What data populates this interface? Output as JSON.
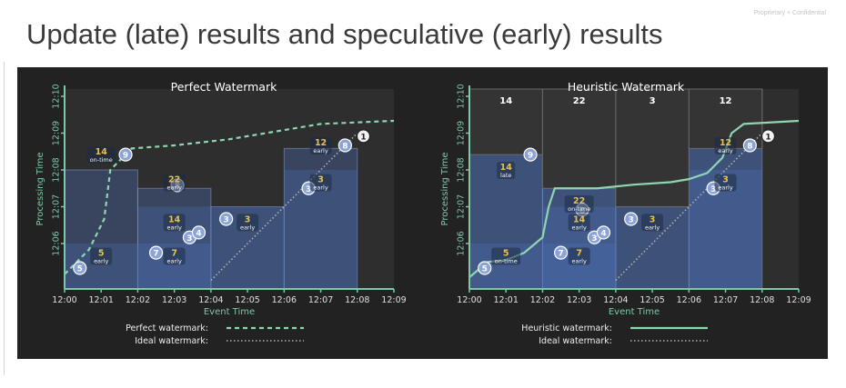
{
  "slide": {
    "title": "Update (late) results and speculative (early) results",
    "confidential": "Proprietary + Confidential"
  },
  "colors": {
    "panel_bg": "#222222",
    "plot_bg": "#2e2e2e",
    "window_fill": "#4d6fb8",
    "pane_fill": "#2e4a7a",
    "watermark": "#8fd6b0",
    "early_label": "#e9c24b",
    "axis": "#7ec8a8"
  },
  "chart_data": [
    {
      "type": "area",
      "title": "Perfect Watermark",
      "xlabel": "Event Time",
      "ylabel": "Processing Time",
      "x_ticks": [
        "12:00",
        "12:01",
        "12:02",
        "12:03",
        "12:04",
        "12:05",
        "12:06",
        "12:07",
        "12:08",
        "12:09"
      ],
      "y_ticks": [
        "12:06",
        "12:07",
        "12:08",
        "12:09",
        "12:10"
      ],
      "windows": [
        {
          "start": "12:00",
          "end": "12:02"
        },
        {
          "start": "12:02",
          "end": "12:04"
        },
        {
          "start": "12:04",
          "end": "12:06"
        },
        {
          "start": "12:06",
          "end": "12:08"
        }
      ],
      "panes": [
        {
          "window": "12:00-12:02",
          "fired": "12:06:00",
          "value": 5,
          "timing": "early"
        },
        {
          "window": "12:00-12:02",
          "fired": "12:08:20",
          "value": 14,
          "timing": "on-time"
        },
        {
          "window": "12:02-12:04",
          "fired": "12:06:00",
          "value": 7,
          "timing": "early"
        },
        {
          "window": "12:02-12:04",
          "fired": "12:07:00",
          "value": 14,
          "timing": "early"
        },
        {
          "window": "12:02-12:04",
          "fired": "12:08:00",
          "value": 22,
          "timing": "early"
        },
        {
          "window": "12:04-12:06",
          "fired": "12:07:00",
          "value": 3,
          "timing": "early"
        },
        {
          "window": "12:06-12:08",
          "fired": "12:08:00",
          "value": 3,
          "timing": "early"
        },
        {
          "window": "12:06-12:08",
          "fired": "12:09:00",
          "value": 12,
          "timing": "early"
        }
      ],
      "pane_labels": [
        {
          "value": "5",
          "timing": "early",
          "x": "12:01",
          "y": "12:05:40"
        },
        {
          "value": "14",
          "timing": "on-time",
          "x": "12:01",
          "y": "12:08:25"
        },
        {
          "value": "7",
          "timing": "early",
          "x": "12:03",
          "y": "12:05:40"
        },
        {
          "value": "14",
          "timing": "early",
          "x": "12:03",
          "y": "12:06:35"
        },
        {
          "value": "22",
          "timing": "early",
          "x": "12:03",
          "y": "12:07:40"
        },
        {
          "value": "3",
          "timing": "early",
          "x": "12:05",
          "y": "12:06:35"
        },
        {
          "value": "3",
          "timing": "early",
          "x": "12:07",
          "y": "12:07:40"
        },
        {
          "value": "12",
          "timing": "early",
          "x": "12:07",
          "y": "12:08:40"
        }
      ],
      "data_points": [
        {
          "label": "5",
          "x": "12:00:25",
          "y": "12:05:20"
        },
        {
          "label": "9",
          "x": "12:01:40",
          "y": "12:08:25"
        },
        {
          "label": "7",
          "x": "12:02:30",
          "y": "12:05:45"
        },
        {
          "label": "8",
          "x": "12:03:05",
          "y": "12:07:35"
        },
        {
          "label": "3",
          "x": "12:03:25",
          "y": "12:06:10"
        },
        {
          "label": "4",
          "x": "12:03:40",
          "y": "12:06:18"
        },
        {
          "label": "3",
          "x": "12:04:25",
          "y": "12:06:40"
        },
        {
          "label": "3",
          "x": "12:06:40",
          "y": "12:07:30"
        },
        {
          "label": "8",
          "x": "12:07:40",
          "y": "12:08:40"
        },
        {
          "label": "1",
          "x": "12:08:10",
          "y": "12:08:55"
        }
      ],
      "watermarks": [
        {
          "name": "Perfect watermark",
          "style": "dashed",
          "points": [
            [
              "12:00:00",
              "12:05:10"
            ],
            [
              "12:00:40",
              "12:05:50"
            ],
            [
              "12:01:05",
              "12:06:40"
            ],
            [
              "12:01:15",
              "12:08:00"
            ],
            [
              "12:01:50",
              "12:08:35"
            ],
            [
              "12:03:00",
              "12:08:40"
            ],
            [
              "12:04:30",
              "12:08:50"
            ],
            [
              "12:06:00",
              "12:09:05"
            ],
            [
              "12:07:00",
              "12:09:15"
            ],
            [
              "12:09:00",
              "12:09:20"
            ]
          ]
        },
        {
          "name": "Ideal watermark",
          "style": "dotted",
          "points": [
            [
              "12:04:00",
              "12:05:00"
            ],
            [
              "12:08:00",
              "12:09:00"
            ]
          ]
        }
      ],
      "legend": [
        {
          "label": "Perfect watermark:",
          "style": "dashed"
        },
        {
          "label": "Ideal watermark:",
          "style": "dotted"
        }
      ],
      "legend_position": "bottom"
    },
    {
      "type": "area",
      "title": "Heuristic Watermark",
      "xlabel": "Event Time",
      "ylabel": "Processing Time",
      "x_ticks": [
        "12:00",
        "12:01",
        "12:02",
        "12:03",
        "12:04",
        "12:05",
        "12:06",
        "12:07",
        "12:08",
        "12:09"
      ],
      "y_ticks": [
        "12:06",
        "12:07",
        "12:08",
        "12:09",
        "12:10"
      ],
      "windows": [
        {
          "start": "12:00",
          "end": "12:02"
        },
        {
          "start": "12:02",
          "end": "12:04"
        },
        {
          "start": "12:04",
          "end": "12:06"
        },
        {
          "start": "12:06",
          "end": "12:08"
        }
      ],
      "window_totals": [
        {
          "window": "12:00-12:02",
          "value": "14"
        },
        {
          "window": "12:02-12:04",
          "value": "22"
        },
        {
          "window": "12:04-12:06",
          "value": "3"
        },
        {
          "window": "12:06-12:08",
          "value": "12"
        }
      ],
      "pane_labels": [
        {
          "value": "5",
          "timing": "on-time",
          "x": "12:01",
          "y": "12:05:40"
        },
        {
          "value": "14",
          "timing": "late",
          "x": "12:01",
          "y": "12:08:00"
        },
        {
          "value": "7",
          "timing": "early",
          "x": "12:03",
          "y": "12:05:40"
        },
        {
          "value": "14",
          "timing": "early",
          "x": "12:03",
          "y": "12:06:35"
        },
        {
          "value": "22",
          "timing": "on-time",
          "x": "12:03",
          "y": "12:07:05"
        },
        {
          "value": "3",
          "timing": "early",
          "x": "12:05",
          "y": "12:06:35"
        },
        {
          "value": "3",
          "timing": "early",
          "x": "12:07",
          "y": "12:07:40"
        },
        {
          "value": "12",
          "timing": "early",
          "x": "12:07",
          "y": "12:08:40"
        }
      ],
      "data_points": [
        {
          "label": "5",
          "x": "12:00:25",
          "y": "12:05:20"
        },
        {
          "label": "9",
          "x": "12:01:40",
          "y": "12:08:25"
        },
        {
          "label": "7",
          "x": "12:02:30",
          "y": "12:05:45"
        },
        {
          "label": "8",
          "x": "12:03:05",
          "y": "12:06:55"
        },
        {
          "label": "3",
          "x": "12:03:25",
          "y": "12:06:10"
        },
        {
          "label": "4",
          "x": "12:03:40",
          "y": "12:06:18"
        },
        {
          "label": "3",
          "x": "12:04:25",
          "y": "12:06:40"
        },
        {
          "label": "3",
          "x": "12:06:40",
          "y": "12:07:30"
        },
        {
          "label": "8",
          "x": "12:07:40",
          "y": "12:08:40"
        },
        {
          "label": "1",
          "x": "12:08:10",
          "y": "12:08:55"
        }
      ],
      "watermarks": [
        {
          "name": "Heuristic watermark",
          "style": "solid",
          "points": [
            [
              "12:00:00",
              "12:05:05"
            ],
            [
              "12:00:30",
              "12:05:30"
            ],
            [
              "12:01:00",
              "12:05:33"
            ],
            [
              "12:01:30",
              "12:05:45"
            ],
            [
              "12:02:00",
              "12:06:10"
            ],
            [
              "12:02:10",
              "12:07:00"
            ],
            [
              "12:02:20",
              "12:07:30"
            ],
            [
              "12:03:30",
              "12:07:30"
            ],
            [
              "12:04:30",
              "12:07:36"
            ],
            [
              "12:05:30",
              "12:07:40"
            ],
            [
              "12:06:00",
              "12:07:45"
            ],
            [
              "12:06:30",
              "12:07:55"
            ],
            [
              "12:06:55",
              "12:08:20"
            ],
            [
              "12:07:10",
              "12:09:00"
            ],
            [
              "12:07:30",
              "12:09:15"
            ],
            [
              "12:09:00",
              "12:09:20"
            ]
          ]
        },
        {
          "name": "Ideal watermark",
          "style": "dotted",
          "points": [
            [
              "12:04:00",
              "12:05:00"
            ],
            [
              "12:08:00",
              "12:09:00"
            ]
          ]
        }
      ],
      "legend": [
        {
          "label": "Heuristic watermark:",
          "style": "solid"
        },
        {
          "label": "Ideal watermark:",
          "style": "dotted"
        }
      ],
      "legend_position": "bottom"
    }
  ]
}
